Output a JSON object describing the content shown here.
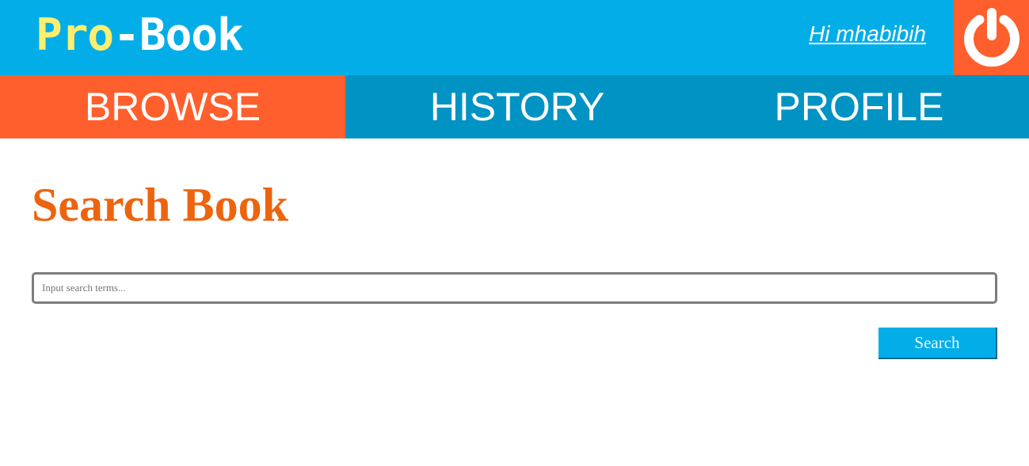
{
  "header": {
    "logo_pro": "Pro",
    "logo_book": "-Book",
    "greeting": "Hi mhabibih",
    "logout_icon": "power-icon"
  },
  "nav": {
    "tabs": [
      {
        "label": "BROWSE",
        "active": true
      },
      {
        "label": "HISTORY",
        "active": false
      },
      {
        "label": "PROFILE",
        "active": false
      }
    ]
  },
  "main": {
    "title": "Search Book",
    "search_placeholder": "Input search terms...",
    "search_value": "",
    "search_button": "Search"
  },
  "colors": {
    "header_bg": "#03aee8",
    "nav_bg": "#0093c4",
    "accent_orange": "#ff5f2c",
    "title_orange": "#ed640f",
    "logo_yellow": "#fcee6f"
  }
}
